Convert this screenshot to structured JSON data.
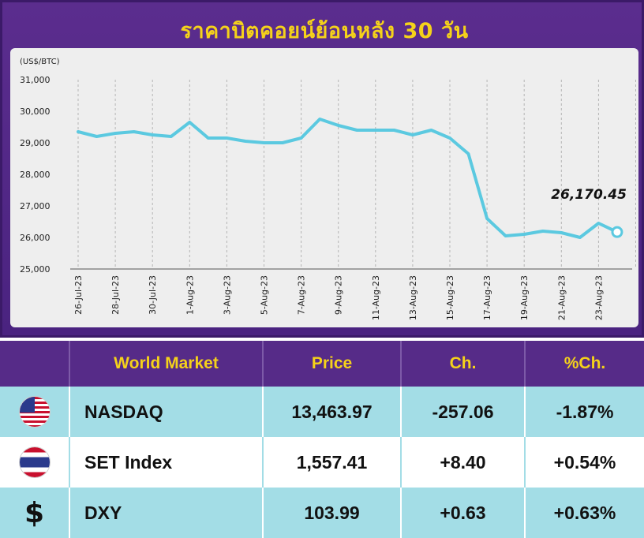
{
  "title": "ราคาบิตคอยน์ย้อนหลัง 30 วัน",
  "chart_data": {
    "type": "line",
    "ylabel": "(US$/BTC)",
    "ylim": [
      25000,
      31000
    ],
    "yticks": [
      "31,000",
      "30,000",
      "29,000",
      "28,000",
      "27,000",
      "26,000",
      "25,000"
    ],
    "ytick_values": [
      31000,
      30000,
      29000,
      28000,
      27000,
      26000,
      25000
    ],
    "xtick_labels": [
      "26-Jul-23",
      "28-Jul-23",
      "30-Jul-23",
      "1-Aug-23",
      "3-Aug-23",
      "5-Aug-23",
      "7-Aug-23",
      "9-Aug-23",
      "11-Aug-23",
      "13-Aug-23",
      "15-Aug-23",
      "17-Aug-23",
      "19-Aug-23",
      "21-Aug-23",
      "23-Aug-23"
    ],
    "x": [
      "26-Jul-23",
      "27-Jul-23",
      "28-Jul-23",
      "29-Jul-23",
      "30-Jul-23",
      "31-Jul-23",
      "1-Aug-23",
      "2-Aug-23",
      "3-Aug-23",
      "4-Aug-23",
      "5-Aug-23",
      "6-Aug-23",
      "7-Aug-23",
      "8-Aug-23",
      "9-Aug-23",
      "10-Aug-23",
      "11-Aug-23",
      "12-Aug-23",
      "13-Aug-23",
      "14-Aug-23",
      "15-Aug-23",
      "16-Aug-23",
      "17-Aug-23",
      "18-Aug-23",
      "19-Aug-23",
      "20-Aug-23",
      "21-Aug-23",
      "22-Aug-23",
      "23-Aug-23",
      "24-Aug-23"
    ],
    "values": [
      29350,
      29200,
      29300,
      29350,
      29250,
      29200,
      29650,
      29150,
      29150,
      29050,
      29000,
      29000,
      29150,
      29750,
      29550,
      29400,
      29400,
      29400,
      29250,
      29400,
      29150,
      28650,
      26600,
      26050,
      26100,
      26200,
      26150,
      26000,
      26450,
      26170.45
    ],
    "last_value_label": "26,170.45",
    "grid": true,
    "line_color": "#5bc9e0"
  },
  "table": {
    "headers": [
      "World Market",
      "Price",
      "Ch.",
      "%Ch."
    ],
    "rows": [
      {
        "icon": "us-flag-icon",
        "name": "NASDAQ",
        "price": "13,463.97",
        "ch": "-257.06",
        "pct": "-1.87%"
      },
      {
        "icon": "thai-flag-icon",
        "name": "SET Index",
        "price": "1,557.41",
        "ch": "+8.40",
        "pct": "+0.54%"
      },
      {
        "icon": "dollar-icon",
        "name": "DXY",
        "price": "103.99",
        "ch": "+0.63",
        "pct": "+0.63%"
      }
    ]
  },
  "colors": {
    "panel": "#562b88",
    "title": "#f5d21a",
    "teal_row": "#a3dde6",
    "line": "#5bc9e0"
  }
}
